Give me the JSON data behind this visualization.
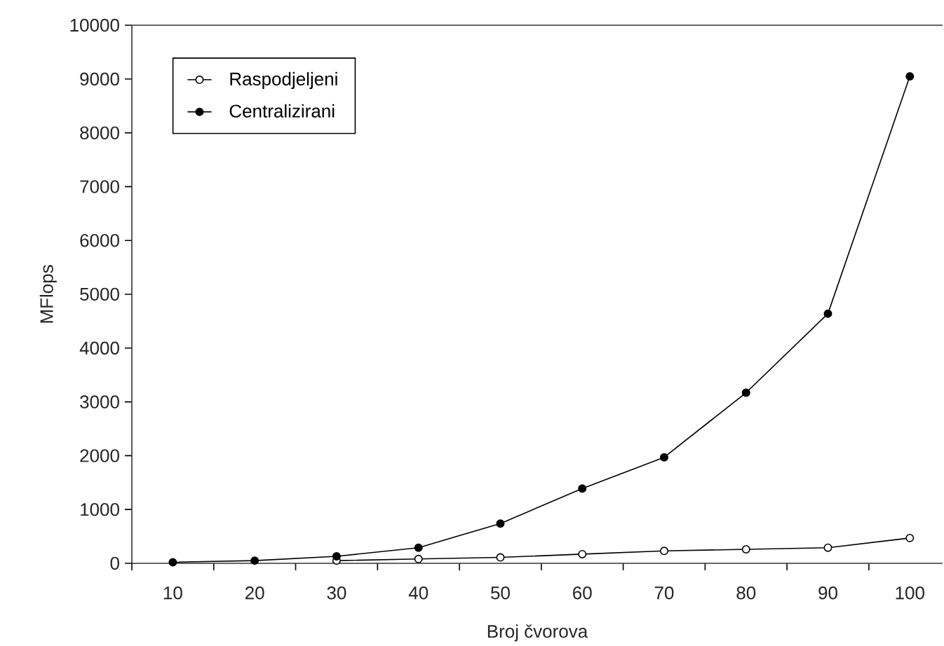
{
  "chart_data": {
    "type": "line",
    "xlabel": "Broj čvorova",
    "ylabel": "MFlops",
    "x": [
      10,
      20,
      30,
      40,
      50,
      60,
      70,
      80,
      90,
      100
    ],
    "series": [
      {
        "name": "Raspodjeljeni",
        "color": "#000000",
        "values": [
          null,
          null,
          50,
          80,
          110,
          170,
          230,
          260,
          290,
          470
        ]
      },
      {
        "name": "Centralizirani",
        "color": "#000000",
        "values": [
          20,
          50,
          130,
          290,
          740,
          1390,
          1970,
          3170,
          4640,
          9050
        ]
      }
    ],
    "xlim": [
      5,
      104
    ],
    "xticks": [
      {
        "value": 5,
        "label": null
      },
      10,
      {
        "value": 15,
        "label": null
      },
      20,
      {
        "value": 25,
        "label": null
      },
      30,
      {
        "value": 35,
        "label": null
      },
      40,
      {
        "value": 45,
        "label": null
      },
      50,
      {
        "value": 55,
        "label": null
      },
      60,
      {
        "value": 65,
        "label": null
      },
      70,
      {
        "value": 75,
        "label": null
      },
      80,
      {
        "value": 85,
        "label": null
      },
      90,
      {
        "value": 95,
        "label": null
      },
      100
    ],
    "ylim": [
      0,
      10000
    ],
    "yticks": [
      0,
      1000,
      2000,
      3000,
      4000,
      5000,
      6000,
      7000,
      8000,
      9000,
      10000
    ],
    "grid": false,
    "legend": "top left",
    "marker": "circle",
    "line_style": "solid"
  }
}
